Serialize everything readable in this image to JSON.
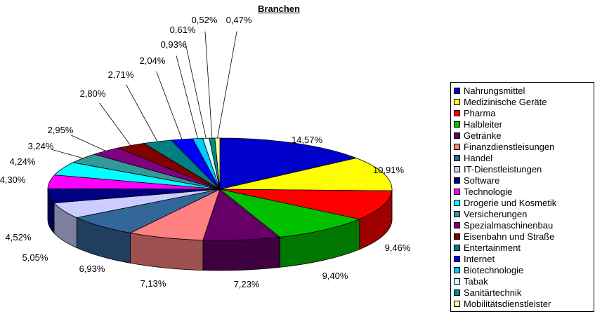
{
  "title": "Branchen",
  "chart_data": {
    "type": "pie",
    "projection": "3d",
    "title": "Branchen",
    "legend_position": "right",
    "categories": [
      "Nahrungsmittel",
      "Medizinische Geräte",
      "Pharma",
      "Halbleiter",
      "Getränke",
      "Finanzdienstleisungen",
      "Handel",
      "IT-Dienstleistungen",
      "Software",
      "Technologie",
      "Drogerie und Kosmetik",
      "Versicherungen",
      "Spezialmaschinenbau",
      "Eisenbahn und Straße",
      "Entertainment",
      "Internet",
      "Biotechnologie",
      "Tabak",
      "Sanitärtechnik",
      "Mobilitätsdienstleister"
    ],
    "values": [
      14.57,
      10.91,
      9.46,
      9.4,
      7.23,
      7.13,
      6.93,
      5.05,
      4.52,
      4.3,
      4.24,
      3.24,
      2.95,
      2.8,
      2.71,
      2.04,
      0.93,
      0.61,
      0.52,
      0.47
    ],
    "percent_labels": [
      "14,57%",
      "10,91%",
      "9,46%",
      "9,40%",
      "7,23%",
      "7,13%",
      "6,93%",
      "5,05%",
      "4,52%",
      "4,30%",
      "4,24%",
      "3,24%",
      "2,95%",
      "2,80%",
      "2,71%",
      "2,04%",
      "0,93%",
      "0,61%",
      "0,52%",
      "0,47%"
    ],
    "colors": [
      "#0000CC",
      "#FFFF00",
      "#FF0000",
      "#00C000",
      "#660066",
      "#FF8080",
      "#336699",
      "#CCCCFF",
      "#000080",
      "#FF00FF",
      "#00FFFF",
      "#339999",
      "#800080",
      "#800000",
      "#008080",
      "#0000FF",
      "#00CCFF",
      "#CCFFFF",
      "#008B8B",
      "#FFFF99"
    ]
  }
}
